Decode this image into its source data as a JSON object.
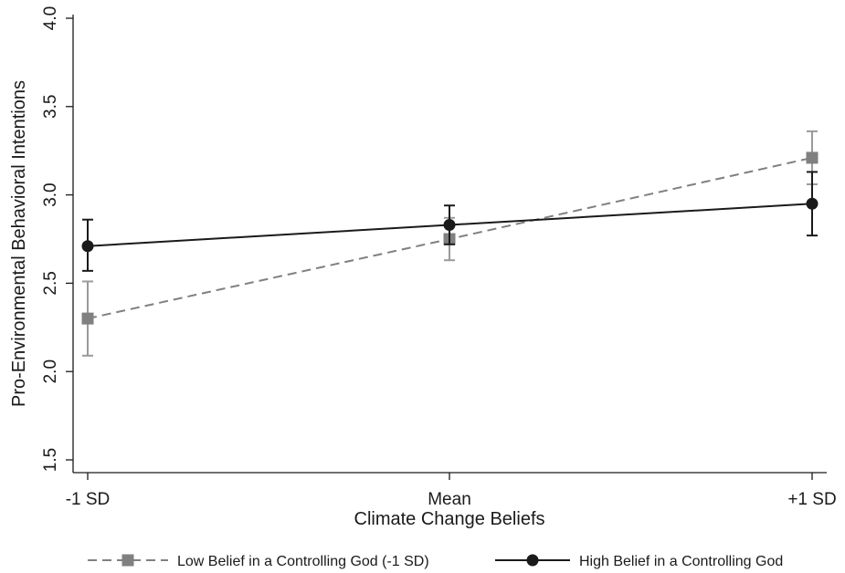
{
  "chart_data": {
    "type": "line",
    "title": "",
    "xlabel": "Climate Change Beliefs",
    "ylabel": "Pro-Environmental Behavioral Intentions",
    "categories": [
      "-1 SD",
      "Mean",
      "+1 SD"
    ],
    "ylim": [
      1.5,
      4.0
    ],
    "yticks": [
      "1.5",
      "2.0",
      "2.5",
      "3.0",
      "3.5",
      "4.0"
    ],
    "grid": false,
    "legend_position": "bottom",
    "series": [
      {
        "name": "Low Belief in a Controlling God (-1 SD)",
        "values": [
          2.3,
          2.75,
          3.21
        ],
        "ci_low": [
          2.09,
          2.63,
          3.06
        ],
        "ci_high": [
          2.51,
          2.87,
          3.36
        ],
        "line_style": "dashed",
        "marker": "square",
        "color": "#808080",
        "bar_color": "#9a9a9a"
      },
      {
        "name": "High Belief in a Controlling God",
        "values": [
          2.71,
          2.83,
          2.95
        ],
        "ci_low": [
          2.57,
          2.72,
          2.77
        ],
        "ci_high": [
          2.86,
          2.94,
          3.13
        ],
        "line_style": "solid",
        "marker": "circle",
        "color": "#1a1a1a",
        "bar_color": "#1a1a1a"
      }
    ]
  }
}
